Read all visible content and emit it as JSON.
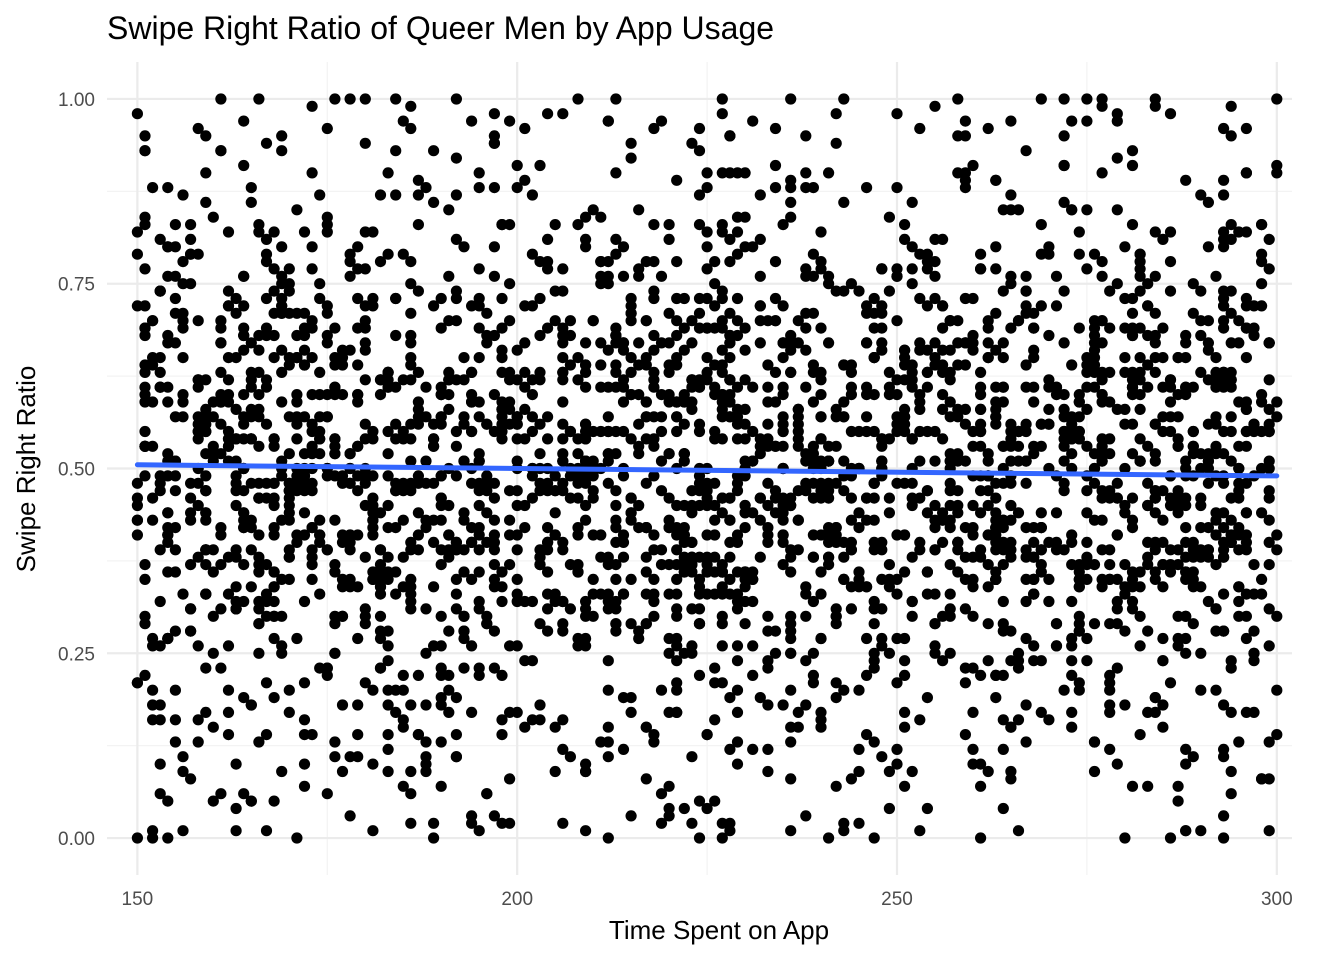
{
  "chart_data": {
    "type": "scatter",
    "title": "Swipe Right Ratio of Queer Men by App Usage",
    "xlabel": "Time Spent on App",
    "ylabel": "Swipe Right Ratio",
    "xlim": [
      146,
      302
    ],
    "ylim": [
      -0.05,
      1.05
    ],
    "x_ticks": [
      150,
      200,
      250,
      300
    ],
    "x_tick_labels": [
      "150",
      "200",
      "250",
      "300"
    ],
    "y_ticks": [
      0,
      0.25,
      0.5,
      0.75,
      1
    ],
    "y_tick_labels": [
      "0.00",
      "0.25",
      "0.50",
      "0.75",
      "1.00"
    ],
    "grid": true,
    "point_color": "#000000",
    "point_count_approx": 3000,
    "point_value_precision": 0.01,
    "point_distribution_note": "Points spread roughly uniformly over x 150-300 (integer minutes) and y 0.00-1.00, densest around y 0.25-0.75.",
    "series": [
      {
        "name": "observations",
        "kind": "points",
        "points_sample": [
          [
            150,
            0.0
          ],
          [
            152,
            0.0
          ],
          [
            154,
            0.0
          ],
          [
            161,
            1.0
          ],
          [
            166,
            1.0
          ],
          [
            178,
            1.0
          ],
          [
            180,
            1.0
          ],
          [
            192,
            1.0
          ],
          [
            208,
            1.0
          ],
          [
            213,
            1.0
          ],
          [
            227,
            1.0
          ],
          [
            236,
            1.0
          ],
          [
            243,
            1.0
          ],
          [
            269,
            1.0
          ],
          [
            272,
            1.0
          ],
          [
            277,
            1.0
          ],
          [
            284,
            1.0
          ],
          [
            300,
            1.0
          ],
          [
            171,
            0.0
          ],
          [
            189,
            0.0
          ],
          [
            212,
            0.0
          ],
          [
            227,
            0.0
          ],
          [
            241,
            0.0
          ],
          [
            247,
            0.0
          ],
          [
            261,
            0.0
          ],
          [
            286,
            0.0
          ],
          [
            293,
            0.0
          ],
          [
            163,
            0.01
          ],
          [
            253,
            0.01
          ],
          [
            266,
            0.01
          ],
          [
            288,
            0.01
          ],
          [
            196,
            0.06
          ],
          [
            219,
            0.02
          ],
          [
            293,
            0.89
          ],
          [
            296,
            0.96
          ],
          [
            300,
            0.91
          ],
          [
            300,
            0.2
          ],
          [
            150,
            0.21
          ],
          [
            150,
            0.48
          ],
          [
            150,
            0.79
          ]
        ]
      },
      {
        "name": "linear fit",
        "kind": "line",
        "color": "#3366ff",
        "x": [
          150,
          300
        ],
        "y": [
          0.505,
          0.49
        ]
      }
    ]
  }
}
